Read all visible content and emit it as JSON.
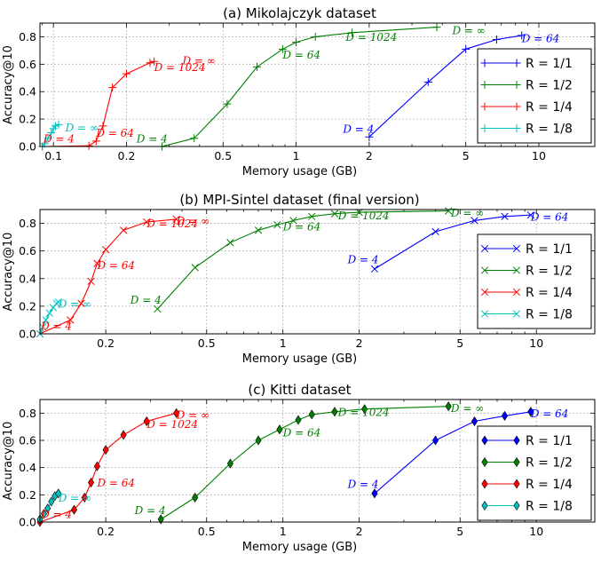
{
  "figure": {
    "colors": {
      "R = 1/1": "#0000ff",
      "R = 1/2": "#008000",
      "R = 1/4": "#ff0000",
      "R = 1/8": "#00bfbf"
    }
  },
  "chart_data": [
    {
      "type": "line",
      "title": "(a) Mikolajczyk dataset",
      "xlabel": "Memory usage (GB)",
      "ylabel": "Accuracy@10",
      "xscale": "log",
      "xlim": [
        0.088,
        17
      ],
      "ylim": [
        0,
        0.9
      ],
      "xticks": [
        0.1,
        0.2,
        0.5,
        1,
        2,
        5,
        10
      ],
      "xtick_labels": [
        "0.1",
        "0.2",
        "0.5",
        "1",
        "2",
        "5",
        "10"
      ],
      "yticks": [
        0,
        0.2,
        0.4,
        0.6,
        0.8
      ],
      "ytick_labels": [
        "0.0",
        "0.2",
        "0.4",
        "0.6",
        "0.8"
      ],
      "grid": true,
      "marker": "plus",
      "legend_position": "right",
      "series": [
        {
          "name": "R = 1/1",
          "x": [
            2.0,
            3.5,
            5.0,
            6.7,
            8.5
          ],
          "y": [
            0.07,
            0.47,
            0.71,
            0.78,
            0.81
          ]
        },
        {
          "name": "R = 1/2",
          "x": [
            0.28,
            0.38,
            0.52,
            0.69,
            0.88,
            1.0,
            1.2,
            1.7,
            3.8
          ],
          "y": [
            0.0,
            0.06,
            0.31,
            0.58,
            0.71,
            0.76,
            0.8,
            0.83,
            0.87
          ]
        },
        {
          "name": "R = 1/4",
          "x": [
            0.09,
            0.14,
            0.15,
            0.16,
            0.175,
            0.2,
            0.25,
            0.26
          ],
          "y": [
            0.0,
            0.005,
            0.04,
            0.15,
            0.43,
            0.53,
            0.61,
            0.62
          ]
        },
        {
          "name": "R = 1/8",
          "x": [
            0.09,
            0.092,
            0.095,
            0.098,
            0.1,
            0.102,
            0.105
          ],
          "y": [
            0.0,
            0.02,
            0.06,
            0.1,
            0.13,
            0.15,
            0.16
          ]
        }
      ],
      "annotations": [
        {
          "text": "D = 4",
          "series": "R = 1/1",
          "x": 1.56,
          "y": 0.1
        },
        {
          "text": "D = 64",
          "series": "R = 1/1",
          "x": 8.5,
          "y": 0.76
        },
        {
          "text": "D = 4",
          "series": "R = 1/2",
          "x": 0.22,
          "y": 0.03
        },
        {
          "text": "D = 64",
          "series": "R = 1/2",
          "x": 0.88,
          "y": 0.64
        },
        {
          "text": "D = 1024",
          "series": "R = 1/2",
          "x": 1.6,
          "y": 0.77
        },
        {
          "text": "D = ∞",
          "series": "R = 1/2",
          "x": 4.4,
          "y": 0.82
        },
        {
          "text": "D = 4",
          "series": "R = 1/4",
          "x": 0.091,
          "y": 0.03
        },
        {
          "text": "D = 64",
          "series": "R = 1/4",
          "x": 0.15,
          "y": 0.07
        },
        {
          "text": "D = 1024",
          "series": "R = 1/4",
          "x": 0.26,
          "y": 0.55
        },
        {
          "text": "D = ∞",
          "series": "R = 1/4",
          "x": 0.34,
          "y": 0.6
        },
        {
          "text": "D = ∞",
          "series": "R = 1/8",
          "x": 0.112,
          "y": 0.11
        }
      ]
    },
    {
      "type": "line",
      "title": "(b) MPI-Sintel dataset (final version)",
      "xlabel": "Memory usage (GB)",
      "ylabel": "Accuracy@10",
      "xscale": "log",
      "xlim": [
        0.11,
        17
      ],
      "ylim": [
        0,
        0.9
      ],
      "xticks": [
        0.2,
        0.5,
        1,
        2,
        5,
        10
      ],
      "xtick_labels": [
        "0.2",
        "0.5",
        "1",
        "2",
        "5",
        "10"
      ],
      "yticks": [
        0,
        0.2,
        0.4,
        0.6,
        0.8
      ],
      "ytick_labels": [
        "0.0",
        "0.2",
        "0.4",
        "0.6",
        "0.8"
      ],
      "grid": true,
      "marker": "x",
      "legend_position": "right",
      "series": [
        {
          "name": "R = 1/1",
          "x": [
            2.3,
            4.0,
            5.7,
            7.5,
            9.5
          ],
          "y": [
            0.47,
            0.74,
            0.82,
            0.85,
            0.86
          ]
        },
        {
          "name": "R = 1/2",
          "x": [
            0.32,
            0.45,
            0.62,
            0.8,
            0.95,
            1.1,
            1.3,
            1.6,
            2.0,
            4.5
          ],
          "y": [
            0.18,
            0.48,
            0.66,
            0.75,
            0.79,
            0.82,
            0.85,
            0.87,
            0.88,
            0.89
          ]
        },
        {
          "name": "R = 1/4",
          "x": [
            0.11,
            0.145,
            0.16,
            0.175,
            0.185,
            0.2,
            0.235,
            0.29,
            0.38
          ],
          "y": [
            0.0,
            0.1,
            0.22,
            0.38,
            0.51,
            0.61,
            0.75,
            0.81,
            0.83
          ]
        },
        {
          "name": "R = 1/8",
          "x": [
            0.11,
            0.113,
            0.116,
            0.12,
            0.124,
            0.128,
            0.13
          ],
          "y": [
            0.0,
            0.05,
            0.1,
            0.15,
            0.19,
            0.22,
            0.23
          ]
        }
      ],
      "annotations": [
        {
          "text": "D = 4",
          "series": "R = 1/1",
          "x": 1.8,
          "y": 0.51
        },
        {
          "text": "D = 64",
          "series": "R = 1/1",
          "x": 9.5,
          "y": 0.82
        },
        {
          "text": "D = 4",
          "series": "R = 1/2",
          "x": 0.25,
          "y": 0.22
        },
        {
          "text": "D = 64",
          "series": "R = 1/2",
          "x": 1.0,
          "y": 0.75
        },
        {
          "text": "D = 1024",
          "series": "R = 1/2",
          "x": 1.65,
          "y": 0.83
        },
        {
          "text": "D = ∞",
          "series": "R = 1/2",
          "x": 4.6,
          "y": 0.85
        },
        {
          "text": "D = 4",
          "series": "R = 1/4",
          "x": 0.111,
          "y": 0.03
        },
        {
          "text": "D = 64",
          "series": "R = 1/4",
          "x": 0.185,
          "y": 0.47
        },
        {
          "text": "D = 1024",
          "series": "R = 1/4",
          "x": 0.29,
          "y": 0.77
        },
        {
          "text": "D = ∞",
          "series": "R = 1/4",
          "x": 0.38,
          "y": 0.79
        },
        {
          "text": "D = ∞",
          "series": "R = 1/8",
          "x": 0.13,
          "y": 0.19
        }
      ]
    },
    {
      "type": "line",
      "title": "(c) Kitti dataset",
      "xlabel": "Memory usage (GB)",
      "ylabel": "Accuracy@10",
      "xscale": "log",
      "xlim": [
        0.11,
        17
      ],
      "ylim": [
        0,
        0.9
      ],
      "xticks": [
        0.2,
        0.5,
        1,
        2,
        5,
        10
      ],
      "xtick_labels": [
        "0.2",
        "0.5",
        "1",
        "2",
        "5",
        "10"
      ],
      "yticks": [
        0,
        0.2,
        0.4,
        0.6,
        0.8
      ],
      "ytick_labels": [
        "0.0",
        "0.2",
        "0.4",
        "0.6",
        "0.8"
      ],
      "grid": true,
      "marker": "diamond",
      "legend_position": "right",
      "series": [
        {
          "name": "R = 1/1",
          "x": [
            2.3,
            4.0,
            5.7,
            7.5,
            9.5
          ],
          "y": [
            0.21,
            0.6,
            0.74,
            0.78,
            0.81
          ]
        },
        {
          "name": "R = 1/2",
          "x": [
            0.33,
            0.45,
            0.62,
            0.8,
            0.97,
            1.15,
            1.3,
            1.6,
            2.1,
            4.5
          ],
          "y": [
            0.02,
            0.18,
            0.43,
            0.6,
            0.68,
            0.75,
            0.79,
            0.81,
            0.83,
            0.85
          ]
        },
        {
          "name": "R = 1/4",
          "x": [
            0.11,
            0.15,
            0.165,
            0.175,
            0.185,
            0.2,
            0.235,
            0.29,
            0.38
          ],
          "y": [
            0.0,
            0.09,
            0.18,
            0.29,
            0.41,
            0.53,
            0.64,
            0.74,
            0.8
          ]
        },
        {
          "name": "R = 1/8",
          "x": [
            0.11,
            0.114,
            0.118,
            0.122,
            0.126,
            0.13
          ],
          "y": [
            0.02,
            0.06,
            0.1,
            0.15,
            0.19,
            0.21
          ]
        }
      ],
      "annotations": [
        {
          "text": "D = 4",
          "series": "R = 1/1",
          "x": 1.8,
          "y": 0.25
        },
        {
          "text": "D = 64",
          "series": "R = 1/1",
          "x": 9.5,
          "y": 0.77
        },
        {
          "text": "D = 4",
          "series": "R = 1/2",
          "x": 0.26,
          "y": 0.06
        },
        {
          "text": "D = 64",
          "series": "R = 1/2",
          "x": 1.0,
          "y": 0.63
        },
        {
          "text": "D = 1024",
          "series": "R = 1/2",
          "x": 1.65,
          "y": 0.78
        },
        {
          "text": "D = ∞",
          "series": "R = 1/2",
          "x": 4.6,
          "y": 0.81
        },
        {
          "text": "D = 4",
          "series": "R = 1/4",
          "x": 0.111,
          "y": 0.03
        },
        {
          "text": "D = 64",
          "series": "R = 1/4",
          "x": 0.185,
          "y": 0.26
        },
        {
          "text": "D = 1024",
          "series": "R = 1/4",
          "x": 0.29,
          "y": 0.69
        },
        {
          "text": "D = ∞",
          "series": "R = 1/4",
          "x": 0.38,
          "y": 0.76
        },
        {
          "text": "D = ∞",
          "series": "R = 1/8",
          "x": 0.13,
          "y": 0.15
        }
      ]
    }
  ]
}
